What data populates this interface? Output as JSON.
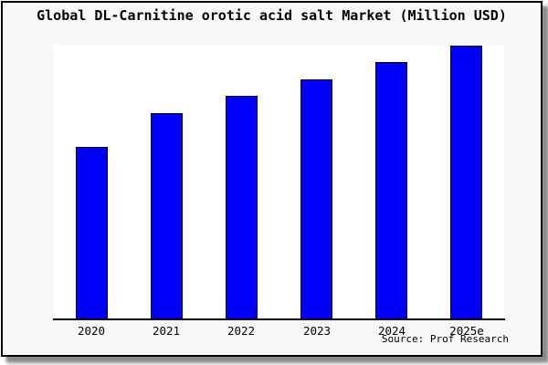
{
  "title": "Global DL-Carnitine orotic acid salt Market (Million USD)",
  "source_note": "Source: Prof Research",
  "colors": {
    "bar_fill": "#0000fa",
    "bar_edge": "#000000",
    "frame_background": "#f8f8f8",
    "plot_background": "#ffffff",
    "frame_border": "#000000",
    "shadow": "#8c8c8c"
  },
  "chart_data": {
    "type": "bar",
    "title": "Global DL-Carnitine orotic acid salt Market (Million USD)",
    "categories": [
      "2020",
      "2021",
      "2022",
      "2023",
      "2024",
      "2025e"
    ],
    "values": [
      63,
      75.3,
      81.7,
      87.7,
      94,
      100
    ],
    "values_unit": "relative index (no y-axis scale shown in image; 2025e = 100)",
    "xlabel": "",
    "ylabel": "",
    "ylim": [
      0,
      100
    ],
    "grid": false,
    "legend": false,
    "y_axis_visible": false,
    "x_axis_visible": true
  }
}
